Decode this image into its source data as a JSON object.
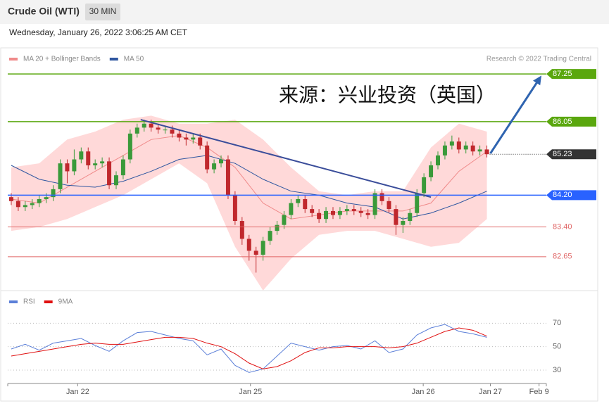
{
  "header": {
    "title": "Crude Oil (WTI)",
    "interval": "30 MIN",
    "timestamp": "Wednesday, January 26, 2022 3:06:25 AM CET"
  },
  "chart_data": [
    {
      "type": "candlestick",
      "credit": "Research © 2022 Trading Central",
      "annotation": "来源：兴业投资（英国）",
      "xlim": [
        0,
        77
      ],
      "ylim": [
        81.85,
        87.43
      ],
      "up_color": "#3a9a3a",
      "down_color": "#c0282d",
      "x": [
        0.5,
        1.5,
        2.5,
        3.5,
        4.5,
        5.5,
        6.5,
        7.5,
        8.5,
        9.5,
        10.5,
        11.5,
        12.5,
        13.5,
        14.5,
        15.5,
        16.5,
        17.5,
        18.5,
        19.5,
        20.5,
        21.5,
        22.5,
        23.5,
        24.5,
        25.5,
        26.5,
        27.5,
        28.5,
        29.5,
        30.5,
        31.5,
        32.5,
        33.5,
        34.5,
        35.5,
        36.5,
        37.5,
        38.5,
        39.5,
        40.5,
        41.5,
        42.5,
        43.5,
        44.5,
        45.5,
        46.5,
        47.5,
        48.5,
        49.5,
        50.5,
        51.5,
        52.5,
        53.5,
        54.5,
        55.5,
        56.5,
        57.5,
        58.5,
        59.5,
        60.5,
        61.5,
        62.5,
        63.5,
        64.5,
        65.5,
        66.5,
        67.5,
        68.5
      ],
      "open": [
        84.15,
        84.05,
        83.9,
        83.95,
        84.0,
        84.1,
        84.15,
        84.35,
        85.0,
        84.8,
        85.1,
        85.3,
        84.95,
        85.0,
        85.05,
        84.45,
        84.7,
        85.1,
        85.75,
        85.9,
        86.0,
        85.9,
        85.85,
        85.85,
        85.75,
        85.65,
        85.6,
        85.65,
        85.45,
        84.85,
        85.0,
        85.1,
        84.2,
        83.55,
        83.1,
        82.8,
        82.7,
        83.05,
        83.3,
        83.45,
        83.7,
        84.0,
        84.1,
        83.85,
        83.75,
        83.6,
        83.8,
        83.7,
        83.8,
        83.85,
        83.8,
        83.75,
        83.7,
        84.25,
        84.05,
        83.85,
        83.45,
        83.55,
        83.75,
        84.25,
        84.65,
        84.95,
        85.2,
        85.45,
        85.55,
        85.35,
        85.45,
        85.3,
        85.35
      ],
      "high": [
        84.25,
        84.15,
        84.05,
        84.1,
        84.2,
        84.25,
        84.45,
        85.1,
        85.1,
        85.35,
        85.4,
        85.4,
        85.1,
        85.15,
        85.15,
        84.8,
        85.2,
        85.85,
        86.0,
        86.1,
        86.1,
        86.0,
        85.95,
        85.95,
        85.85,
        85.75,
        85.75,
        85.75,
        85.55,
        85.1,
        85.2,
        85.2,
        84.3,
        83.65,
        83.2,
        82.9,
        83.15,
        83.4,
        83.55,
        83.8,
        84.1,
        84.2,
        84.2,
        83.95,
        83.85,
        83.9,
        83.9,
        83.9,
        83.95,
        83.95,
        83.9,
        83.85,
        84.35,
        84.35,
        84.15,
        83.95,
        83.65,
        83.85,
        84.35,
        84.75,
        85.05,
        85.3,
        85.55,
        85.7,
        85.65,
        85.55,
        85.55,
        85.45,
        85.45
      ],
      "low": [
        83.95,
        83.8,
        83.8,
        83.85,
        83.9,
        84.0,
        84.05,
        84.25,
        84.5,
        84.7,
        85.0,
        84.85,
        84.85,
        84.9,
        84.35,
        84.35,
        84.6,
        85.0,
        85.65,
        85.8,
        85.8,
        85.75,
        85.75,
        85.65,
        85.55,
        85.45,
        85.5,
        85.35,
        84.75,
        84.75,
        84.9,
        84.1,
        83.45,
        82.95,
        82.55,
        82.25,
        82.55,
        82.95,
        83.2,
        83.35,
        83.6,
        83.9,
        83.75,
        83.65,
        83.5,
        83.5,
        83.6,
        83.6,
        83.7,
        83.7,
        83.65,
        83.6,
        83.6,
        83.95,
        83.75,
        83.2,
        83.25,
        83.45,
        83.65,
        84.15,
        84.55,
        84.85,
        85.1,
        85.35,
        85.25,
        85.25,
        85.2,
        85.2,
        85.15
      ],
      "close": [
        84.05,
        83.9,
        83.95,
        84.0,
        84.1,
        84.15,
        84.35,
        85.0,
        84.8,
        85.1,
        85.3,
        84.95,
        85.0,
        85.05,
        84.45,
        84.7,
        85.1,
        85.75,
        85.9,
        86.0,
        85.9,
        85.85,
        85.85,
        85.75,
        85.65,
        85.6,
        85.65,
        85.45,
        84.85,
        85.0,
        85.1,
        84.2,
        83.55,
        83.1,
        82.8,
        82.7,
        83.05,
        83.3,
        83.45,
        83.7,
        84.0,
        84.1,
        83.85,
        83.75,
        83.6,
        83.8,
        83.7,
        83.8,
        83.85,
        83.8,
        83.75,
        83.7,
        84.25,
        84.05,
        83.85,
        83.45,
        83.55,
        83.75,
        84.25,
        84.65,
        84.95,
        85.2,
        85.45,
        85.55,
        85.35,
        85.45,
        85.3,
        85.35,
        85.23
      ],
      "series": [
        {
          "name": "MA 20 + Bollinger Bands",
          "color": "#f08a8a",
          "band_color": "#ffd9d9",
          "x": [
            0.5,
            4.5,
            8.5,
            12.5,
            16.5,
            20.5,
            24.5,
            28.5,
            32.5,
            36.5,
            40.5,
            44.5,
            48.5,
            52.5,
            56.5,
            60.5,
            64.5,
            68.5
          ],
          "values": [
            84.1,
            84.0,
            84.4,
            84.8,
            85.2,
            85.6,
            85.7,
            85.4,
            84.9,
            84.0,
            83.6,
            83.7,
            83.8,
            83.8,
            83.8,
            84.0,
            84.8,
            85.3
          ],
          "upper": [
            84.9,
            85.0,
            85.6,
            85.8,
            86.1,
            86.2,
            86.0,
            86.0,
            86.1,
            85.6,
            84.9,
            84.3,
            84.2,
            84.3,
            84.3,
            85.4,
            86.0,
            85.8
          ],
          "lower": [
            83.3,
            83.4,
            83.6,
            83.9,
            84.2,
            84.6,
            85.0,
            84.5,
            82.9,
            81.8,
            82.6,
            83.2,
            83.3,
            83.3,
            83.1,
            82.9,
            83.0,
            83.6
          ]
        },
        {
          "name": "MA 50",
          "color": "#2f56a0",
          "x": [
            0.5,
            4.5,
            8.5,
            12.5,
            16.5,
            20.5,
            24.5,
            28.5,
            32.5,
            36.5,
            40.5,
            44.5,
            48.5,
            52.5,
            56.5,
            60.5,
            64.5,
            68.5
          ],
          "values": [
            84.95,
            84.6,
            84.45,
            84.4,
            84.55,
            84.8,
            85.1,
            85.2,
            85.0,
            84.6,
            84.3,
            84.2,
            84.0,
            83.9,
            83.6,
            83.75,
            84.0,
            84.3
          ]
        }
      ],
      "levels": [
        {
          "value": 87.25,
          "color": "#5aa70e",
          "box": true
        },
        {
          "value": 86.05,
          "color": "#5aa70e",
          "box": true
        },
        {
          "value": 84.2,
          "label": "84.20",
          "color": "#2962ff",
          "box": true
        },
        {
          "value": 83.4,
          "label": "83.40",
          "color": "#e06666",
          "box": false
        },
        {
          "value": 82.65,
          "color": "#e06666",
          "box": false
        }
      ],
      "last": {
        "value": 85.23,
        "color": "#333333"
      },
      "trendline": {
        "x": [
          19.0,
          60.5
        ],
        "y": [
          86.1,
          84.15
        ],
        "color": "#3a4d9a"
      },
      "arrow": {
        "x": [
          69.0,
          76.3
        ],
        "y": [
          85.25,
          87.21
        ],
        "color": "#2f64b0"
      }
    },
    {
      "type": "line",
      "xlim": [
        0,
        77
      ],
      "ylim": [
        21,
        81
      ],
      "yticks": [
        30,
        50,
        70
      ],
      "xticks": [
        {
          "value": 10,
          "label": "Jan 22"
        },
        {
          "value": 34.7,
          "label": "Jan 25"
        },
        {
          "value": 59.4,
          "label": "Jan 26"
        },
        {
          "value": 69.0,
          "label": "Jan 27"
        },
        {
          "value": 75.96,
          "label": "Feb 9"
        }
      ],
      "series": [
        {
          "name": "RSI",
          "color": "#5b7fd8",
          "x": [
            0.5,
            2.5,
            4.5,
            6.5,
            8.5,
            10.5,
            12.5,
            14.5,
            16.5,
            18.5,
            20.5,
            22.5,
            24.5,
            26.5,
            28.5,
            30.5,
            32.5,
            34.5,
            36.5,
            38.5,
            40.5,
            42.5,
            44.5,
            46.5,
            48.5,
            50.5,
            52.5,
            54.5,
            56.5,
            58.5,
            60.5,
            62.5,
            64.5,
            66.5,
            68.5
          ],
          "values": [
            48,
            52,
            47,
            53,
            55,
            57,
            51,
            46,
            55,
            62,
            63,
            60,
            57,
            55,
            43,
            48,
            34,
            28,
            31,
            42,
            53,
            50,
            47,
            50,
            51,
            48,
            55,
            45,
            48,
            60,
            66,
            69,
            63,
            61,
            58
          ]
        },
        {
          "name": "9MA",
          "color": "#e01010",
          "x": [
            0.5,
            2.5,
            4.5,
            6.5,
            8.5,
            10.5,
            12.5,
            14.5,
            16.5,
            18.5,
            20.5,
            22.5,
            24.5,
            26.5,
            28.5,
            30.5,
            32.5,
            34.5,
            36.5,
            38.5,
            40.5,
            42.5,
            44.5,
            46.5,
            48.5,
            50.5,
            52.5,
            54.5,
            56.5,
            58.5,
            60.5,
            62.5,
            64.5,
            66.5,
            68.5
          ],
          "values": [
            42,
            44,
            46,
            48,
            50,
            52,
            53,
            52,
            52,
            54,
            56,
            58,
            58,
            57,
            53,
            50,
            44,
            36,
            31,
            33,
            38,
            45,
            49,
            49,
            50,
            50,
            50,
            49,
            50,
            53,
            58,
            63,
            66,
            64,
            59
          ]
        }
      ]
    }
  ]
}
